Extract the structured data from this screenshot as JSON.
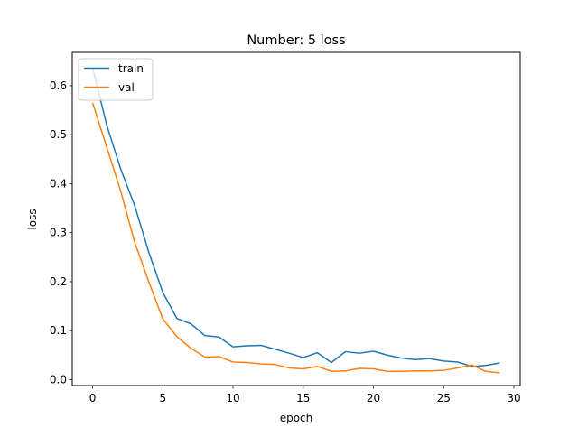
{
  "chart_data": {
    "type": "line",
    "title": "Number: 5 loss",
    "xlabel": "epoch",
    "ylabel": "loss",
    "xlim": [
      -1.45,
      30.45
    ],
    "ylim": [
      -0.012,
      0.668
    ],
    "xticks": [
      0,
      5,
      10,
      15,
      20,
      25,
      30
    ],
    "yticks": [
      0.0,
      0.1,
      0.2,
      0.3,
      0.4,
      0.5,
      0.6
    ],
    "grid": false,
    "legend": {
      "placement": "top-left"
    },
    "x": [
      0,
      1,
      2,
      3,
      4,
      5,
      6,
      7,
      8,
      9,
      10,
      11,
      12,
      13,
      14,
      15,
      16,
      17,
      18,
      19,
      20,
      21,
      22,
      23,
      24,
      25,
      26,
      27,
      28,
      29
    ],
    "series": [
      {
        "name": "train",
        "color": "#1f77b4",
        "values": [
          0.637,
          0.52,
          0.43,
          0.355,
          0.26,
          0.178,
          0.125,
          0.114,
          0.09,
          0.087,
          0.067,
          0.069,
          0.07,
          0.062,
          0.054,
          0.045,
          0.055,
          0.035,
          0.057,
          0.054,
          0.058,
          0.05,
          0.044,
          0.041,
          0.043,
          0.038,
          0.036,
          0.027,
          0.029,
          0.034
        ]
      },
      {
        "name": "val",
        "color": "#ff7f0e",
        "values": [
          0.565,
          0.475,
          0.385,
          0.28,
          0.2,
          0.124,
          0.088,
          0.064,
          0.046,
          0.047,
          0.036,
          0.035,
          0.032,
          0.031,
          0.024,
          0.022,
          0.027,
          0.017,
          0.018,
          0.023,
          0.022,
          0.017,
          0.017,
          0.018,
          0.018,
          0.019,
          0.024,
          0.03,
          0.017,
          0.014
        ]
      }
    ]
  }
}
